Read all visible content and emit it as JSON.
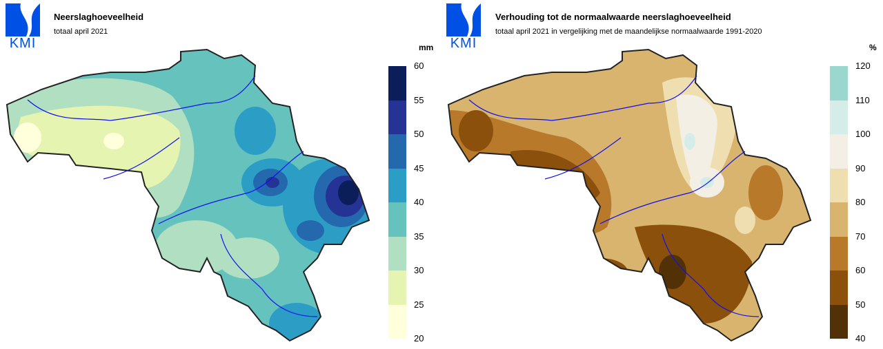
{
  "left_panel": {
    "logo_text": "KMI",
    "title": "Neerslaghoeveelheid",
    "subtitle": "totaal april 2021",
    "unit": "mm",
    "legend_ticks": [
      "60",
      "55",
      "50",
      "45",
      "40",
      "35",
      "30",
      "25",
      "20"
    ],
    "legend_colors": [
      "#0c1e5a",
      "#253494",
      "#2468ae",
      "#2c9ec6",
      "#66c2bd",
      "#b1dfc1",
      "#e6f4b1",
      "#ffffdc"
    ]
  },
  "right_panel": {
    "logo_text": "KMI",
    "title": "Verhouding tot de normaalwaarde neerslaghoeveelheid",
    "subtitle": "totaal april 2021 in vergelijking met de maandelijkse normaalwaarde 1991-2020",
    "unit": "%",
    "legend_ticks": [
      "120",
      "110",
      "100",
      "90",
      "80",
      "70",
      "60",
      "50",
      "40"
    ],
    "legend_colors": [
      "#9ad8cf",
      "#d4ede8",
      "#f4efe4",
      "#efdeb0",
      "#d8b46f",
      "#b8792b",
      "#8a500c",
      "#533106"
    ]
  }
}
